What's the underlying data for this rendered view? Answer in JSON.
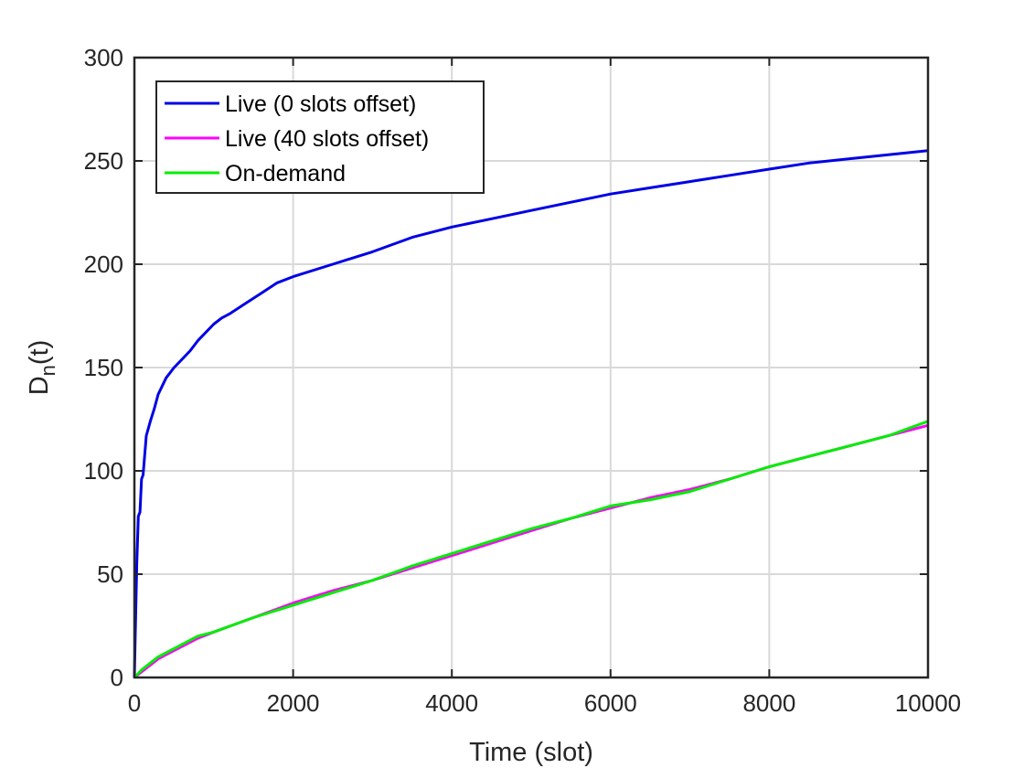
{
  "chart_data": {
    "type": "line",
    "xlabel": "Time (slot)",
    "ylabel": {
      "main": "D",
      "sub": "n",
      "suffix": "(t)"
    },
    "xlim": [
      0,
      10000
    ],
    "ylim": [
      0,
      300
    ],
    "xticks": [
      0,
      2000,
      4000,
      6000,
      8000,
      10000
    ],
    "yticks": [
      0,
      50,
      100,
      150,
      200,
      250,
      300
    ],
    "grid": true,
    "legend": "top-left",
    "series": [
      {
        "name": "Live (0 slots offset)",
        "color": "#0000e6",
        "x": [
          0,
          10,
          30,
          50,
          70,
          90,
          110,
          150,
          200,
          250,
          300,
          400,
          500,
          600,
          700,
          800,
          900,
          1000,
          1100,
          1200,
          1400,
          1600,
          1800,
          2000,
          2500,
          3000,
          3500,
          4000,
          4500,
          5000,
          5500,
          6000,
          6500,
          7000,
          7500,
          8000,
          8500,
          9000,
          9500,
          10000
        ],
        "y": [
          0,
          20,
          55,
          78,
          80,
          96,
          98,
          117,
          124,
          130,
          137,
          145,
          150,
          154,
          158,
          163,
          167,
          171,
          174,
          176,
          181,
          186,
          191,
          194,
          200,
          206,
          213,
          218,
          222,
          226,
          230,
          234,
          237,
          240,
          243,
          246,
          249,
          251,
          253,
          255
        ]
      },
      {
        "name": "Live (40 slots offset)",
        "color": "#ff00ff",
        "x": [
          0,
          100,
          200,
          300,
          400,
          600,
          800,
          1000,
          1500,
          2000,
          2500,
          3000,
          3500,
          4000,
          4500,
          5000,
          5500,
          6000,
          6500,
          7000,
          7500,
          8000,
          8500,
          9000,
          9500,
          10000
        ],
        "y": [
          0,
          3,
          6,
          9,
          11,
          15,
          19,
          22,
          29,
          36,
          42,
          47,
          53,
          59,
          65,
          71,
          77,
          82,
          87,
          91,
          96,
          102,
          107,
          112,
          117,
          122
        ]
      },
      {
        "name": "On-demand",
        "color": "#00ee00",
        "x": [
          0,
          100,
          200,
          300,
          400,
          600,
          800,
          1000,
          1500,
          2000,
          2500,
          3000,
          3500,
          4000,
          4500,
          5000,
          5500,
          6000,
          6500,
          7000,
          7500,
          8000,
          8500,
          9000,
          9500,
          10000
        ],
        "y": [
          0,
          4,
          7,
          10,
          12,
          16,
          20,
          22,
          29,
          35,
          41,
          47,
          54,
          60,
          66,
          72,
          77,
          83,
          86,
          90,
          96,
          102,
          107,
          112,
          117,
          124
        ]
      }
    ]
  }
}
